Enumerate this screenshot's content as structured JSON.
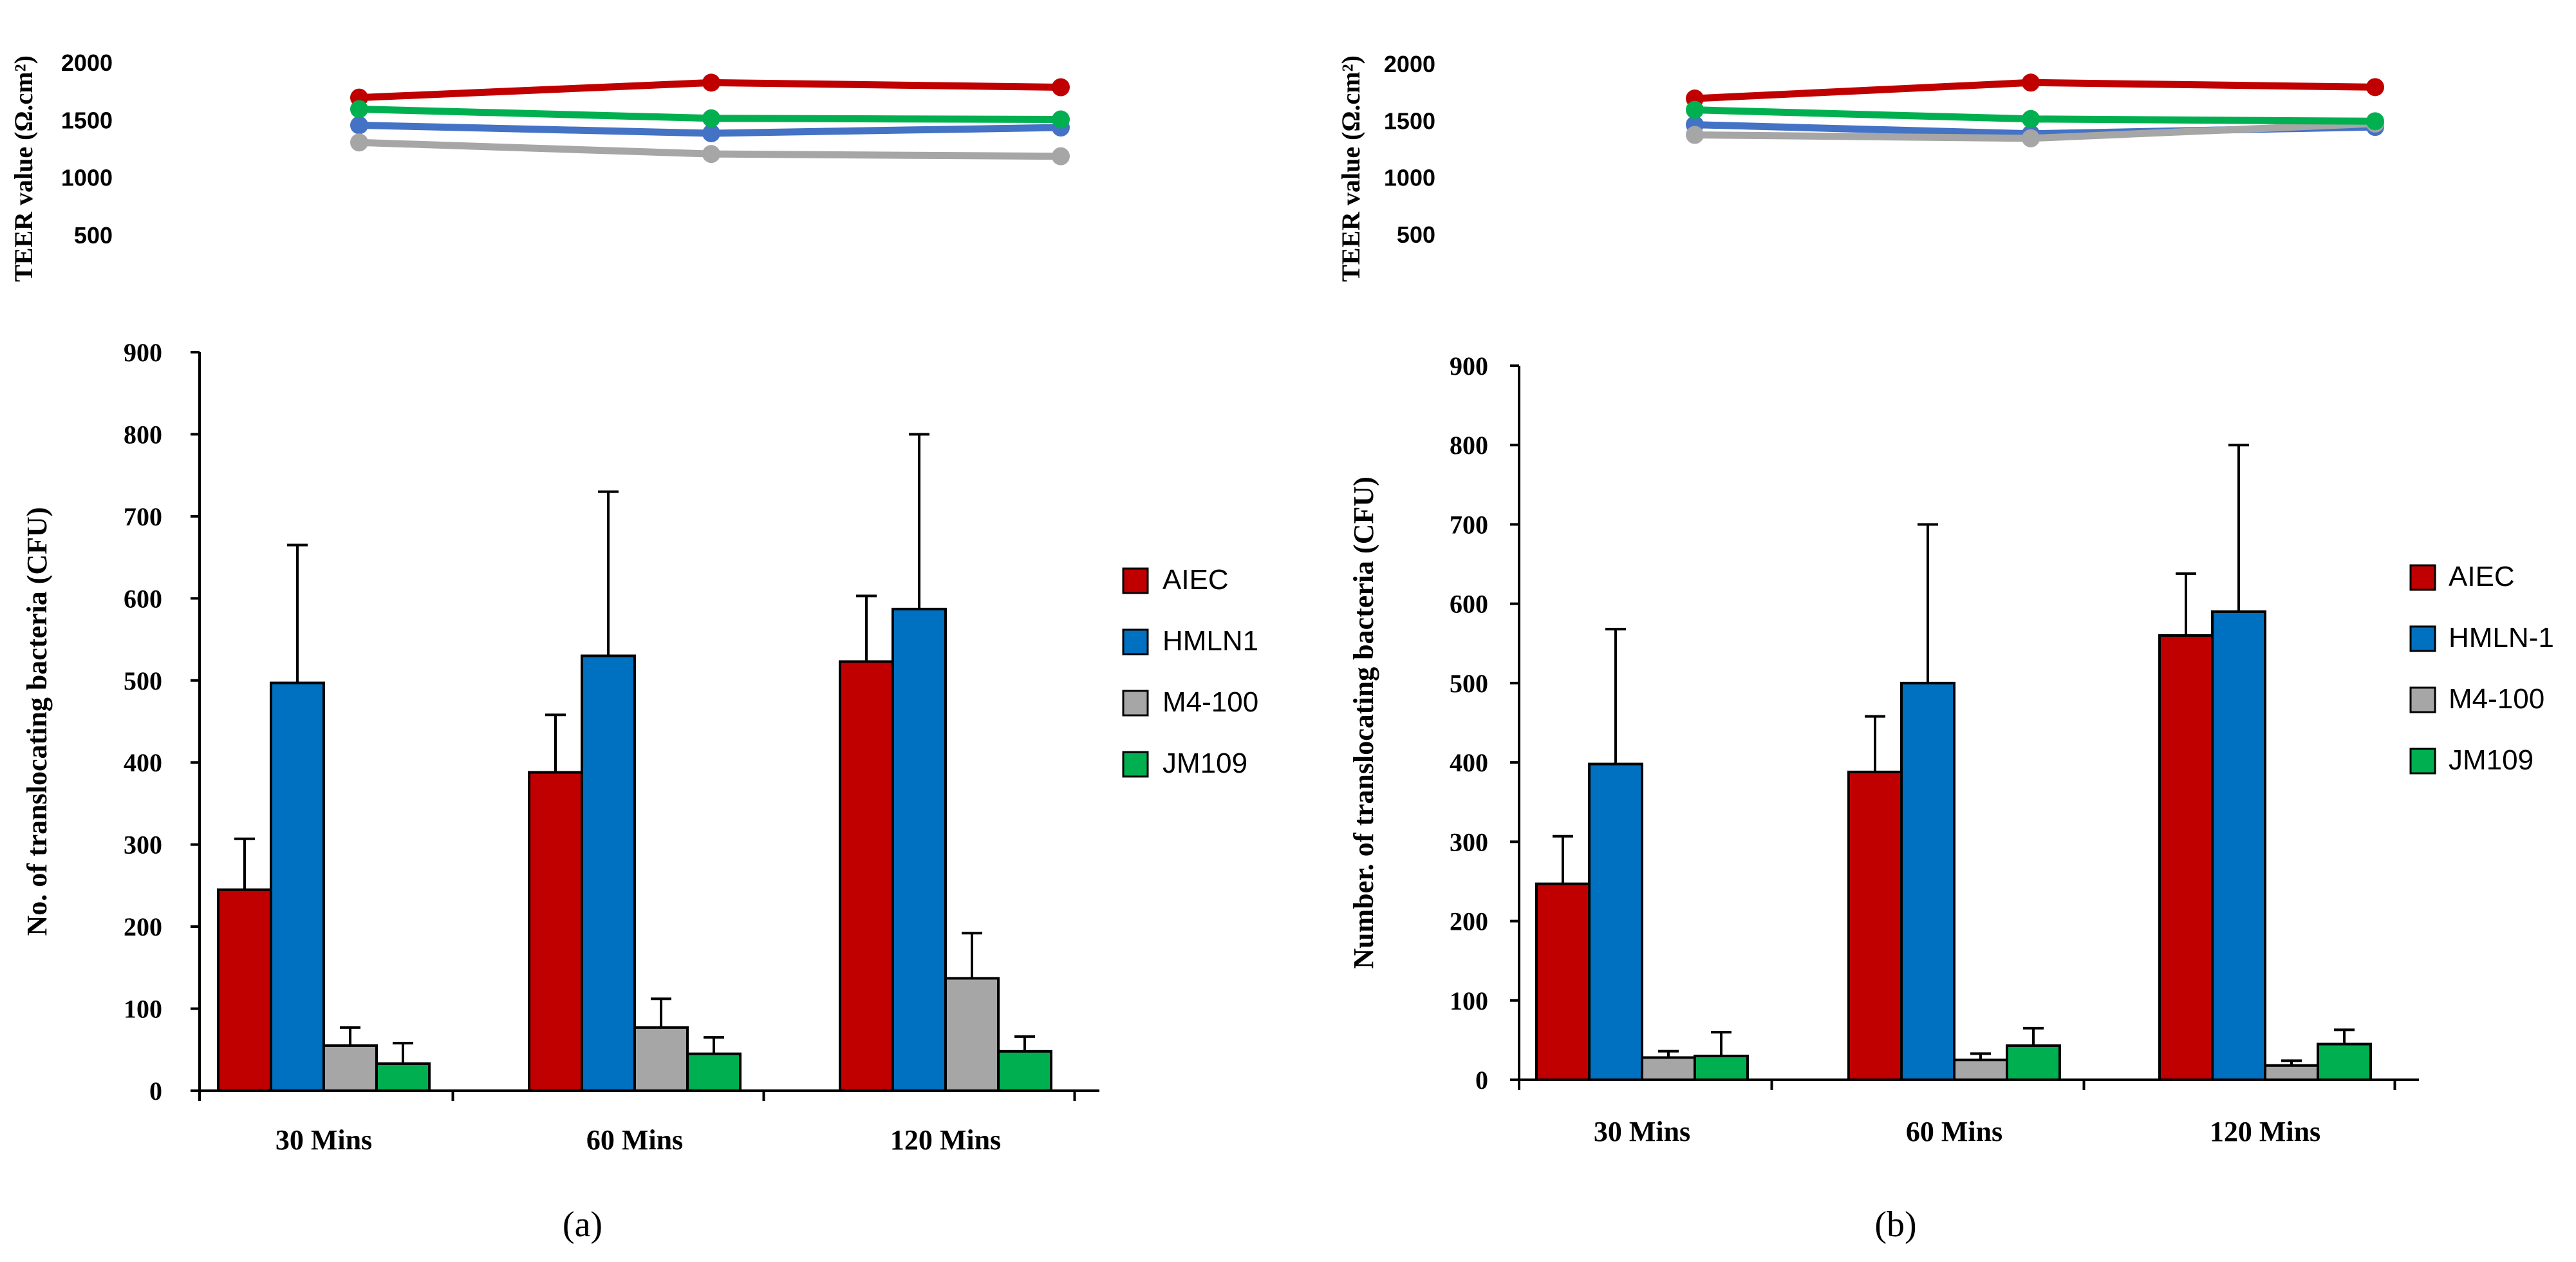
{
  "chart_data": [
    {
      "panel": "a",
      "caption": "(a)",
      "type": "bar",
      "ylabel": "No. of translocating bacteria (CFU)",
      "ylim": [
        0,
        900
      ],
      "yticks": [
        0,
        100,
        200,
        300,
        400,
        500,
        600,
        700,
        800,
        900
      ],
      "categories": [
        "30 Mins",
        "60 Mins",
        "120 Mins"
      ],
      "series": [
        {
          "name": "AIEC",
          "color": "#c00000",
          "values": [
            245,
            388,
            523
          ],
          "errors": [
            62,
            70,
            80
          ]
        },
        {
          "name": "HMLN1",
          "color": "#0070c0",
          "values": [
            497,
            530,
            587
          ],
          "errors": [
            168,
            200,
            213
          ]
        },
        {
          "name": "M4-100",
          "color": "#a6a6a6",
          "values": [
            55,
            77,
            137
          ],
          "errors": [
            22,
            35,
            55
          ]
        },
        {
          "name": "JM109",
          "color": "#00b050",
          "values": [
            33,
            45,
            48
          ],
          "errors": [
            25,
            20,
            18
          ]
        }
      ],
      "teer": {
        "type": "line",
        "ylabel": "TEER value (Ω.cm²)",
        "yticks": [
          500,
          1000,
          1500,
          2000
        ],
        "ylim": [
          0,
          2100
        ],
        "series": [
          {
            "name": "AIEC",
            "color": "#c00000",
            "values": [
              1700,
              1830,
              1790
            ]
          },
          {
            "name": "HMLN1",
            "color": "#4472c4",
            "values": [
              1460,
              1390,
              1440
            ]
          },
          {
            "name": "M4-100",
            "color": "#a6a6a6",
            "values": [
              1310,
              1210,
              1190
            ]
          },
          {
            "name": "JM109",
            "color": "#00b050",
            "values": [
              1600,
              1520,
              1510
            ]
          }
        ]
      }
    },
    {
      "panel": "b",
      "caption": "(b)",
      "type": "bar",
      "ylabel": "Number. of translocating bacteria (CFU)",
      "ylim": [
        0,
        900
      ],
      "yticks": [
        0,
        100,
        200,
        300,
        400,
        500,
        600,
        700,
        800,
        900
      ],
      "categories": [
        "30 Mins",
        "60 Mins",
        "120 Mins"
      ],
      "series": [
        {
          "name": "AIEC",
          "color": "#c00000",
          "values": [
            247,
            388,
            560
          ],
          "errors": [
            60,
            70,
            78
          ]
        },
        {
          "name": "HMLN-1",
          "color": "#0070c0",
          "values": [
            398,
            500,
            590
          ],
          "errors": [
            170,
            200,
            210
          ]
        },
        {
          "name": "M4-100",
          "color": "#a6a6a6",
          "values": [
            28,
            25,
            18
          ],
          "errors": [
            8,
            8,
            6
          ]
        },
        {
          "name": "JM109",
          "color": "#00b050",
          "values": [
            30,
            43,
            45
          ],
          "errors": [
            30,
            22,
            18
          ]
        }
      ],
      "teer": {
        "type": "line",
        "ylabel": "TEER value (Ω.cm²)",
        "yticks": [
          500,
          1000,
          1500,
          2000
        ],
        "ylim": [
          0,
          2100
        ],
        "series": [
          {
            "name": "AIEC",
            "color": "#c00000",
            "values": [
              1700,
              1840,
              1800
            ]
          },
          {
            "name": "HMLN-1",
            "color": "#4472c4",
            "values": [
              1470,
              1390,
              1450
            ]
          },
          {
            "name": "M4-100",
            "color": "#a6a6a6",
            "values": [
              1380,
              1350,
              1480
            ]
          },
          {
            "name": "JM109",
            "color": "#00b050",
            "values": [
              1600,
              1520,
              1500
            ]
          }
        ]
      }
    }
  ]
}
